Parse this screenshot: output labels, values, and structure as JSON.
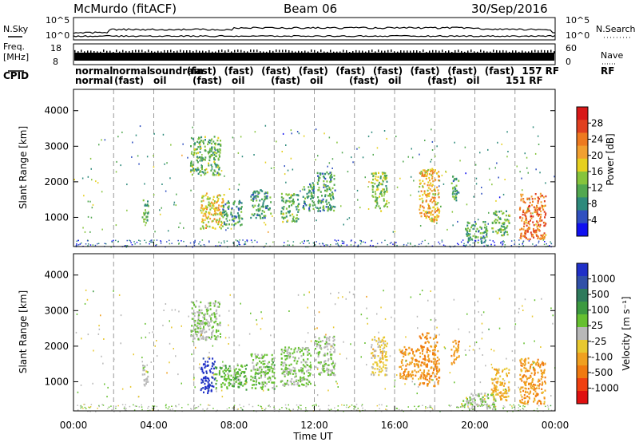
{
  "header": {
    "title": "McMurdo (fitACF)",
    "beam": "Beam 06",
    "date": "30/Sep/2016"
  },
  "aux": {
    "nsky_label": "N.Sky",
    "nsearch_label": "N.Search",
    "noise_ticks": [
      "10^5",
      "10^0"
    ],
    "freq_label_line1": "Freq.",
    "freq_label_line2": "[MHz]",
    "freq_ticks": [
      "18",
      "8"
    ],
    "nave_label": "Nave",
    "nave_ticks": [
      "60",
      "0"
    ],
    "cpid_label": "CPID",
    "cpid_row1": [
      "normal",
      "normal",
      "soundrain",
      "(fast)",
      "(fast)",
      "(fast)",
      "(fast)",
      "(fast)",
      "(fast)",
      "(fast)",
      "(fast)",
      "(fast)",
      "157 RF"
    ],
    "cpid_row2": [
      "normal",
      "(fast)",
      "oil",
      "(fast)",
      "oil",
      "(fast)",
      "oil",
      "(fast)",
      "oil",
      "(fast)",
      "oil",
      "151 RF"
    ],
    "cpid_tail_row1": "157 RF",
    "cpid_tail_row2": "151 RF"
  },
  "colors": {
    "background": "#ffffff",
    "axes": "#000000",
    "ground_scatter": "#b0b0b0"
  },
  "chart_data": [
    {
      "type": "heatmap",
      "panel": "power",
      "xlabel": "Time UT",
      "ylabel": "Slant Range [km]",
      "xlim": [
        0,
        24
      ],
      "ylim": [
        180,
        4600
      ],
      "x_ticks": [
        "00:00",
        "04:00",
        "08:00",
        "12:00",
        "16:00",
        "20:00",
        "00:00"
      ],
      "y_ticks": [
        1000,
        2000,
        3000,
        4000
      ],
      "vertical_dashed_gridlines_hours": [
        2,
        4,
        6,
        8,
        10,
        12,
        14,
        16,
        18,
        20,
        22
      ],
      "colorbar": {
        "label": "Power [dB]",
        "ticks": [
          28,
          24,
          20,
          16,
          12,
          8,
          4
        ],
        "range": [
          0,
          32
        ],
        "colors": [
          "#1010f0",
          "#3050c0",
          "#2e8a7c",
          "#52a850",
          "#86c43c",
          "#e6d020",
          "#f2a030",
          "#ee7a20",
          "#e04020",
          "#d81818"
        ]
      },
      "echo_regions": [
        {
          "t_start": 3.4,
          "t_end": 3.7,
          "r_min": 800,
          "r_max": 1600,
          "level": 12
        },
        {
          "t_start": 5.8,
          "t_end": 7.3,
          "r_min": 2200,
          "r_max": 3300,
          "level": 12
        },
        {
          "t_start": 6.3,
          "t_end": 7.5,
          "r_min": 700,
          "r_max": 1700,
          "level": 18
        },
        {
          "t_start": 7.4,
          "t_end": 8.4,
          "r_min": 800,
          "r_max": 1500,
          "level": 10
        },
        {
          "t_start": 8.8,
          "t_end": 9.8,
          "r_min": 1000,
          "r_max": 1800,
          "level": 10
        },
        {
          "t_start": 10.3,
          "t_end": 11.2,
          "r_min": 900,
          "r_max": 1700,
          "level": 12
        },
        {
          "t_start": 11.4,
          "t_end": 12.0,
          "r_min": 1200,
          "r_max": 2000,
          "level": 10
        },
        {
          "t_start": 12.1,
          "t_end": 13.0,
          "r_min": 1200,
          "r_max": 2300,
          "level": 10
        },
        {
          "t_start": 14.8,
          "t_end": 15.6,
          "r_min": 1200,
          "r_max": 2300,
          "level": 14
        },
        {
          "t_start": 17.2,
          "t_end": 18.2,
          "r_min": 900,
          "r_max": 2400,
          "level": 20
        },
        {
          "t_start": 18.8,
          "t_end": 19.2,
          "r_min": 1500,
          "r_max": 2200,
          "level": 10
        },
        {
          "t_start": 19.5,
          "t_end": 20.6,
          "r_min": 300,
          "r_max": 900,
          "level": 10
        },
        {
          "t_start": 20.8,
          "t_end": 21.7,
          "r_min": 500,
          "r_max": 1200,
          "level": 12
        },
        {
          "t_start": 22.2,
          "t_end": 23.5,
          "r_min": 400,
          "r_max": 1700,
          "level": 24
        }
      ]
    },
    {
      "type": "heatmap",
      "panel": "velocity",
      "xlabel": "Time UT",
      "ylabel": "Slant Range [km]",
      "xlim": [
        0,
        24
      ],
      "ylim": [
        180,
        4600
      ],
      "x_ticks": [
        "00:00",
        "04:00",
        "08:00",
        "12:00",
        "16:00",
        "20:00",
        "00:00"
      ],
      "y_ticks": [
        1000,
        2000,
        3000,
        4000
      ],
      "vertical_dashed_gridlines_hours": [
        2,
        4,
        6,
        8,
        10,
        12,
        14,
        16,
        18,
        20,
        22
      ],
      "colorbar": {
        "label": "Velocity [m s⁻¹]",
        "ticks": [
          "1000",
          "500",
          "100",
          "25",
          "-25",
          "-100",
          "-500",
          "-1000"
        ],
        "colors": [
          "#2030c8",
          "#3050a8",
          "#2e7a5c",
          "#3c9a40",
          "#66c030",
          "#b8b8b8",
          "#e8c830",
          "#f0a020",
          "#f07a10",
          "#f04010",
          "#e01010"
        ]
      },
      "echo_regions": [
        {
          "t_start": 3.4,
          "t_end": 3.7,
          "r_min": 900,
          "r_max": 1500,
          "velocity": 50
        },
        {
          "t_start": 5.8,
          "t_end": 7.3,
          "r_min": 2200,
          "r_max": 3300,
          "velocity": 80
        },
        {
          "t_start": 6.3,
          "t_end": 7.0,
          "r_min": 700,
          "r_max": 1700,
          "velocity": 900
        },
        {
          "t_start": 7.0,
          "t_end": 8.6,
          "r_min": 800,
          "r_max": 1500,
          "velocity": 200
        },
        {
          "t_start": 8.8,
          "t_end": 10.0,
          "r_min": 800,
          "r_max": 1800,
          "velocity": 150
        },
        {
          "t_start": 10.3,
          "t_end": 11.8,
          "r_min": 900,
          "r_max": 2000,
          "velocity": 120
        },
        {
          "t_start": 12.0,
          "t_end": 13.0,
          "r_min": 1200,
          "r_max": 2300,
          "velocity": 60
        },
        {
          "t_start": 14.8,
          "t_end": 15.6,
          "r_min": 1200,
          "r_max": 2300,
          "velocity": -150
        },
        {
          "t_start": 16.2,
          "t_end": 17.2,
          "r_min": 1100,
          "r_max": 2000,
          "velocity": -400
        },
        {
          "t_start": 17.2,
          "t_end": 18.2,
          "r_min": 900,
          "r_max": 2400,
          "velocity": -450
        },
        {
          "t_start": 18.8,
          "t_end": 19.2,
          "r_min": 1500,
          "r_max": 2200,
          "velocity": -400
        },
        {
          "t_start": 19.3,
          "t_end": 21.0,
          "r_min": 250,
          "r_max": 700,
          "velocity": 50
        },
        {
          "t_start": 20.8,
          "t_end": 21.7,
          "r_min": 500,
          "r_max": 1400,
          "velocity": -300
        },
        {
          "t_start": 22.2,
          "t_end": 23.5,
          "r_min": 400,
          "r_max": 1700,
          "velocity": -400
        }
      ]
    }
  ]
}
